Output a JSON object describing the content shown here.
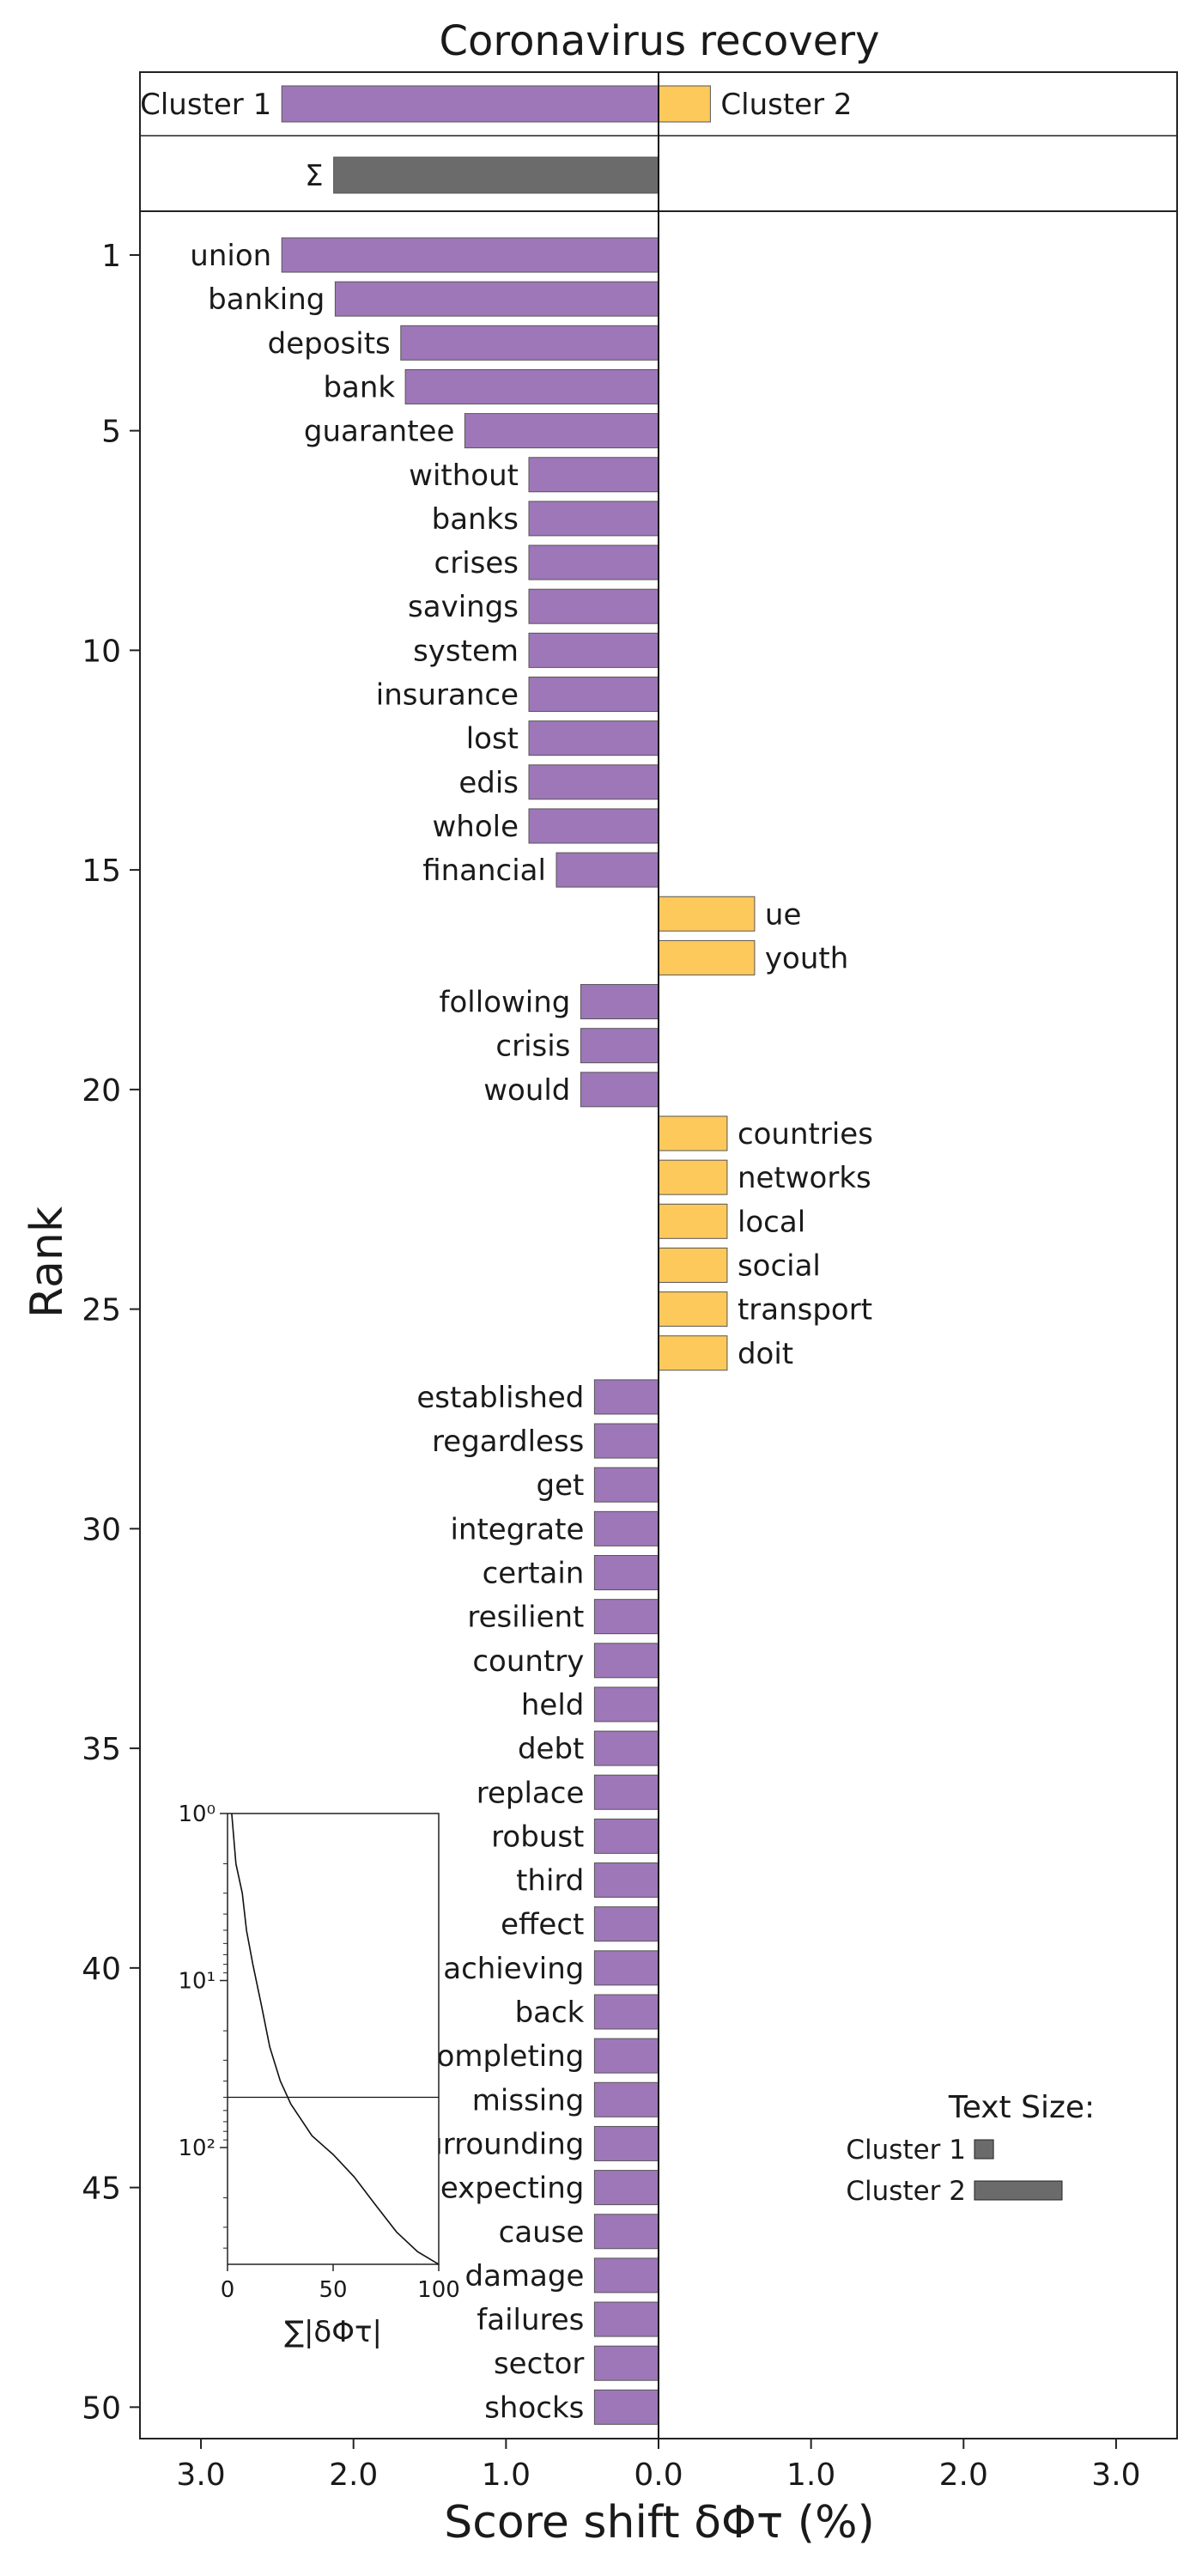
{
  "chart_data": {
    "type": "bar",
    "title": "Coronavirus recovery",
    "xlabel": "Score shift δΦτ (%)",
    "ylabel": "Rank",
    "xlim": [
      -3.4,
      3.4
    ],
    "x_ticks": [
      -3,
      -2,
      -1,
      0,
      1,
      2,
      3
    ],
    "x_tick_labels": [
      "3.0",
      "2.0",
      "1.0",
      "0.0",
      "1.0",
      "2.0",
      "3.0"
    ],
    "y_ticks": [
      1,
      5,
      10,
      15,
      20,
      25,
      30,
      35,
      40,
      45,
      50
    ],
    "y_tick_labels": [
      "1",
      "5",
      "10",
      "15",
      "20",
      "25",
      "30",
      "35",
      "40",
      "45",
      "50"
    ],
    "colors": {
      "cluster1": "#9e77b8",
      "cluster2": "#fdc95b",
      "sigma": "#6b6b6b",
      "edge": "#555555"
    },
    "summary": {
      "cluster1_label": "Cluster 1",
      "cluster1_value": -2.47,
      "cluster2_label": "Cluster 2",
      "cluster2_value": 0.34,
      "sigma_label": "Σ",
      "sigma_value": -2.13
    },
    "words": [
      {
        "rank": 1,
        "word": "union",
        "value": -2.47
      },
      {
        "rank": 2,
        "word": "banking",
        "value": -2.12
      },
      {
        "rank": 3,
        "word": "deposits",
        "value": -1.69
      },
      {
        "rank": 4,
        "word": "bank",
        "value": -1.66
      },
      {
        "rank": 5,
        "word": "guarantee",
        "value": -1.27
      },
      {
        "rank": 6,
        "word": "without",
        "value": -0.85
      },
      {
        "rank": 7,
        "word": "banks",
        "value": -0.85
      },
      {
        "rank": 8,
        "word": "crises",
        "value": -0.85
      },
      {
        "rank": 9,
        "word": "savings",
        "value": -0.85
      },
      {
        "rank": 10,
        "word": "system",
        "value": -0.85
      },
      {
        "rank": 11,
        "word": "insurance",
        "value": -0.85
      },
      {
        "rank": 12,
        "word": "lost",
        "value": -0.85
      },
      {
        "rank": 13,
        "word": "edis",
        "value": -0.85
      },
      {
        "rank": 14,
        "word": "whole",
        "value": -0.85
      },
      {
        "rank": 15,
        "word": "financial",
        "value": -0.67
      },
      {
        "rank": 16,
        "word": "ue",
        "value": 0.63
      },
      {
        "rank": 17,
        "word": "youth",
        "value": 0.63
      },
      {
        "rank": 18,
        "word": "following",
        "value": -0.51
      },
      {
        "rank": 19,
        "word": "crisis",
        "value": -0.51
      },
      {
        "rank": 20,
        "word": "would",
        "value": -0.51
      },
      {
        "rank": 21,
        "word": "countries",
        "value": 0.45
      },
      {
        "rank": 22,
        "word": "networks",
        "value": 0.45
      },
      {
        "rank": 23,
        "word": "local",
        "value": 0.45
      },
      {
        "rank": 24,
        "word": "social",
        "value": 0.45
      },
      {
        "rank": 25,
        "word": "transport",
        "value": 0.45
      },
      {
        "rank": 26,
        "word": "doit",
        "value": 0.45
      },
      {
        "rank": 27,
        "word": "established",
        "value": -0.42
      },
      {
        "rank": 28,
        "word": "regardless",
        "value": -0.42
      },
      {
        "rank": 29,
        "word": "get",
        "value": -0.42
      },
      {
        "rank": 30,
        "word": "integrate",
        "value": -0.42
      },
      {
        "rank": 31,
        "word": "certain",
        "value": -0.42
      },
      {
        "rank": 32,
        "word": "resilient",
        "value": -0.42
      },
      {
        "rank": 33,
        "word": "country",
        "value": -0.42
      },
      {
        "rank": 34,
        "word": "held",
        "value": -0.42
      },
      {
        "rank": 35,
        "word": "debt",
        "value": -0.42
      },
      {
        "rank": 36,
        "word": "replace",
        "value": -0.42
      },
      {
        "rank": 37,
        "word": "robust",
        "value": -0.42
      },
      {
        "rank": 38,
        "word": "third",
        "value": -0.42
      },
      {
        "rank": 39,
        "word": "effect",
        "value": -0.42
      },
      {
        "rank": 40,
        "word": "achieving",
        "value": -0.42
      },
      {
        "rank": 41,
        "word": "back",
        "value": -0.42
      },
      {
        "rank": 42,
        "word": "completing",
        "value": -0.42
      },
      {
        "rank": 43,
        "word": "missing",
        "value": -0.42
      },
      {
        "rank": 44,
        "word": "surrounding",
        "value": -0.42
      },
      {
        "rank": 45,
        "word": "expecting",
        "value": -0.42
      },
      {
        "rank": 46,
        "word": "cause",
        "value": -0.42
      },
      {
        "rank": 47,
        "word": "damage",
        "value": -0.42
      },
      {
        "rank": 48,
        "word": "failures",
        "value": -0.42
      },
      {
        "rank": 49,
        "word": "sector",
        "value": -0.42
      },
      {
        "rank": 50,
        "word": "shocks",
        "value": -0.42
      }
    ],
    "inset": {
      "xlabel": "∑|δΦτ|",
      "xlim": [
        0,
        100
      ],
      "x_ticks": [
        0,
        50,
        100
      ],
      "x_tick_labels": [
        "0",
        "50",
        "100"
      ],
      "y_scale": "log",
      "y_inverted": true,
      "ylim": [
        1,
        500
      ],
      "y_ticks": [
        1,
        10,
        100
      ],
      "y_tick_labels": [
        "10⁰",
        "10¹",
        "10²"
      ],
      "hline_rank": 50,
      "curve": [
        {
          "x": 2,
          "rank": 1
        },
        {
          "x": 4,
          "rank": 2
        },
        {
          "x": 7,
          "rank": 3
        },
        {
          "x": 9,
          "rank": 5
        },
        {
          "x": 12,
          "rank": 8
        },
        {
          "x": 16,
          "rank": 14
        },
        {
          "x": 20,
          "rank": 25
        },
        {
          "x": 25,
          "rank": 40
        },
        {
          "x": 30,
          "rank": 55
        },
        {
          "x": 40,
          "rank": 85
        },
        {
          "x": 50,
          "rank": 110
        },
        {
          "x": 60,
          "rank": 150
        },
        {
          "x": 70,
          "rank": 220
        },
        {
          "x": 80,
          "rank": 320
        },
        {
          "x": 90,
          "rank": 420
        },
        {
          "x": 100,
          "rank": 500
        }
      ]
    },
    "text_size_legend": {
      "title": "Text Size:",
      "items": [
        {
          "label": "Cluster 1",
          "value": 0.13
        },
        {
          "label": "Cluster 2",
          "value": 0.6
        }
      ]
    }
  }
}
